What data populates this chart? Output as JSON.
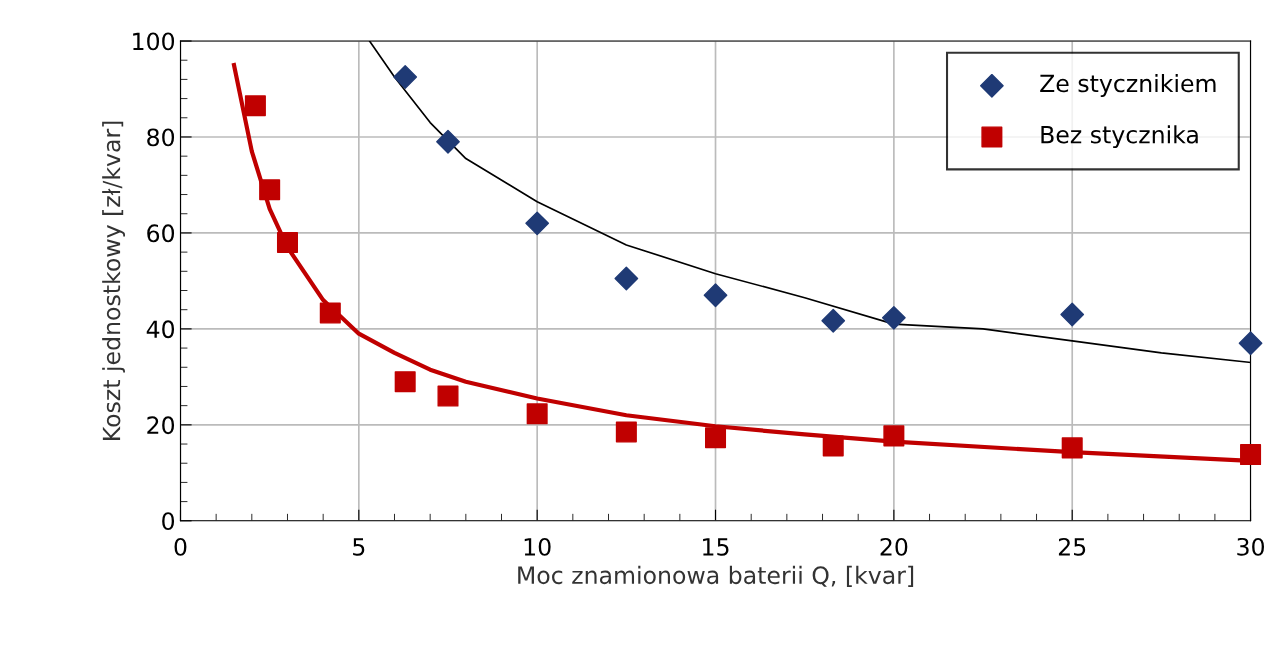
{
  "chart_data": {
    "type": "scatter",
    "xlabel": "Moc znamionowa baterii Q, [kvar]",
    "ylabel": "Koszt jednostkowy [zł/kvar]",
    "xlim": [
      0,
      30
    ],
    "xticks": [
      0,
      5,
      10,
      15,
      20,
      25,
      30
    ],
    "ylim": [
      0,
      100
    ],
    "yticks": [
      0,
      20,
      40,
      60,
      80,
      100
    ],
    "grid": true,
    "legend": "top right",
    "series": [
      {
        "name": "Ze stycznikiem",
        "marker": "diamond",
        "color": "#1f3a75",
        "x": [
          6.3,
          7.5,
          10,
          12.5,
          15,
          18.3,
          20,
          25,
          30
        ],
        "values": [
          92.5,
          79,
          62,
          50.5,
          47,
          41.7,
          42.3,
          43,
          37
        ]
      },
      {
        "name": "Bez stycznika",
        "marker": "square",
        "color": "#c00000",
        "x": [
          2.1,
          2.5,
          3,
          4.2,
          6.3,
          7.5,
          10,
          12.5,
          15,
          18.3,
          20,
          25,
          30
        ],
        "values": [
          86.5,
          69,
          58,
          43.3,
          29,
          26,
          22.3,
          18.5,
          17.3,
          15.6,
          17.7,
          15.2,
          13.8
        ]
      },
      {
        "type": "line",
        "color": "#000000",
        "x": [
          5.3,
          6,
          7,
          8,
          10,
          12.5,
          15,
          17.5,
          20,
          22.5,
          25,
          27.5,
          30
        ],
        "values": [
          100,
          92.5,
          83,
          75.5,
          66.5,
          57.5,
          51.5,
          46.5,
          41,
          40,
          37.5,
          35,
          33
        ]
      },
      {
        "type": "line",
        "color": "#c00000",
        "x": [
          1.5,
          2,
          2.5,
          3,
          4,
          5,
          6,
          7,
          8,
          10,
          12.5,
          15,
          17.5,
          20,
          25,
          30
        ],
        "values": [
          95,
          77,
          65,
          57,
          46,
          39,
          35,
          31.5,
          29,
          25.5,
          22,
          19.7,
          18,
          16.5,
          14.3,
          12.5
        ]
      }
    ]
  }
}
